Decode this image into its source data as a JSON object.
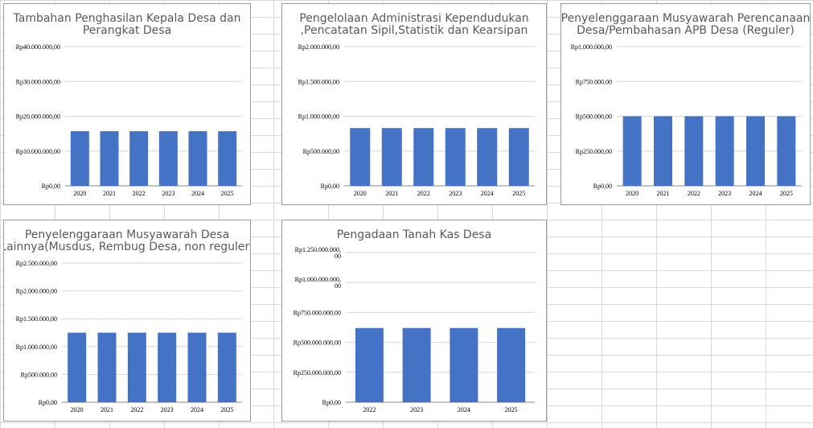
{
  "sheet": {
    "grid_color": "#d9d9d9",
    "bar_color": "#4472c4"
  },
  "chart_data": [
    {
      "type": "bar",
      "title_lines": [
        "Tambahan Penghasilan Kepala Desa dan",
        "Perangkat Desa"
      ],
      "categories": [
        "2020",
        "2021",
        "2022",
        "2023",
        "2024",
        "2025"
      ],
      "values": [
        15700000,
        15700000,
        15700000,
        15700000,
        15700000,
        15700000
      ],
      "ylim": [
        0,
        40000000
      ],
      "yticks": [
        0,
        10000000,
        20000000,
        30000000,
        40000000
      ],
      "ytick_labels": [
        [
          "Rp0,00"
        ],
        [
          "Rp10.000.000,00"
        ],
        [
          "Rp20.000.000,00"
        ],
        [
          "Rp30.000.000,00"
        ],
        [
          "Rp40.000.000,00"
        ]
      ],
      "grid": true,
      "legend": "none"
    },
    {
      "type": "bar",
      "title_lines": [
        "Pengelolaan Administrasi Kependudukan",
        ",Pencatatan Sipil,Statistik dan Kearsipan"
      ],
      "categories": [
        "2020",
        "2021",
        "2022",
        "2023",
        "2024",
        "2025"
      ],
      "values": [
        830000,
        830000,
        830000,
        830000,
        830000,
        830000
      ],
      "ylim": [
        0,
        2000000
      ],
      "yticks": [
        0,
        500000,
        1000000,
        1500000,
        2000000
      ],
      "ytick_labels": [
        [
          "Rp0,00"
        ],
        [
          "Rp500.000,00"
        ],
        [
          "Rp1.000.000,00"
        ],
        [
          "Rp1.500.000,00"
        ],
        [
          "Rp2.000.000,00"
        ]
      ],
      "grid": true,
      "legend": "none"
    },
    {
      "type": "bar",
      "title_lines": [
        "Penyelenggaraan Musyawarah Perencanaan",
        "Desa/Pembahasan APB Desa (Reguler)"
      ],
      "categories": [
        "2020",
        "2021",
        "2022",
        "2023",
        "2024",
        "2025"
      ],
      "values": [
        500000,
        500000,
        500000,
        500000,
        500000,
        500000
      ],
      "ylim": [
        0,
        1000000
      ],
      "yticks": [
        0,
        250000,
        500000,
        750000,
        1000000
      ],
      "ytick_labels": [
        [
          "Rp0,00"
        ],
        [
          "Rp250.000,00"
        ],
        [
          "Rp500.000,00"
        ],
        [
          "Rp750.000,00"
        ],
        [
          "Rp1.000.000,00"
        ]
      ],
      "grid": true,
      "legend": "none"
    },
    {
      "type": "bar",
      "title_lines": [
        "Penyelenggaraan Musyawarah Desa",
        "Lainnya(Musdus, Rembug Desa, non reguler)"
      ],
      "categories": [
        "2020",
        "2021",
        "2022",
        "2023",
        "2024",
        "2025"
      ],
      "values": [
        1250000,
        1250000,
        1250000,
        1250000,
        1250000,
        1250000
      ],
      "ylim": [
        0,
        2500000
      ],
      "yticks": [
        0,
        500000,
        1000000,
        1500000,
        2000000,
        2500000
      ],
      "ytick_labels": [
        [
          "Rp0,00"
        ],
        [
          "Rp500.000,00"
        ],
        [
          "Rp1.000.000,00"
        ],
        [
          "Rp1.500.000,00"
        ],
        [
          "Rp2.000.000,00"
        ],
        [
          "Rp2.500.000,00"
        ]
      ],
      "grid": true,
      "legend": "none"
    },
    {
      "type": "bar",
      "title_lines": [
        "Pengadaan Tanah Kas Desa"
      ],
      "categories": [
        "2022",
        "2023",
        "2024",
        "2025"
      ],
      "values": [
        620000000,
        620000000,
        620000000,
        620000000
      ],
      "ylim": [
        0,
        1250000000
      ],
      "yticks": [
        0,
        250000000,
        500000000,
        750000000,
        1000000000,
        1250000000
      ],
      "ytick_labels": [
        [
          "Rp0,00"
        ],
        [
          "Rp250.000.000,00"
        ],
        [
          "Rp500.000.000,00"
        ],
        [
          "Rp750.000.000,00"
        ],
        [
          "Rp1.000.000.000,",
          "00"
        ],
        [
          "Rp1.250.000.000,",
          "00"
        ]
      ],
      "grid": true,
      "legend": "none"
    }
  ]
}
